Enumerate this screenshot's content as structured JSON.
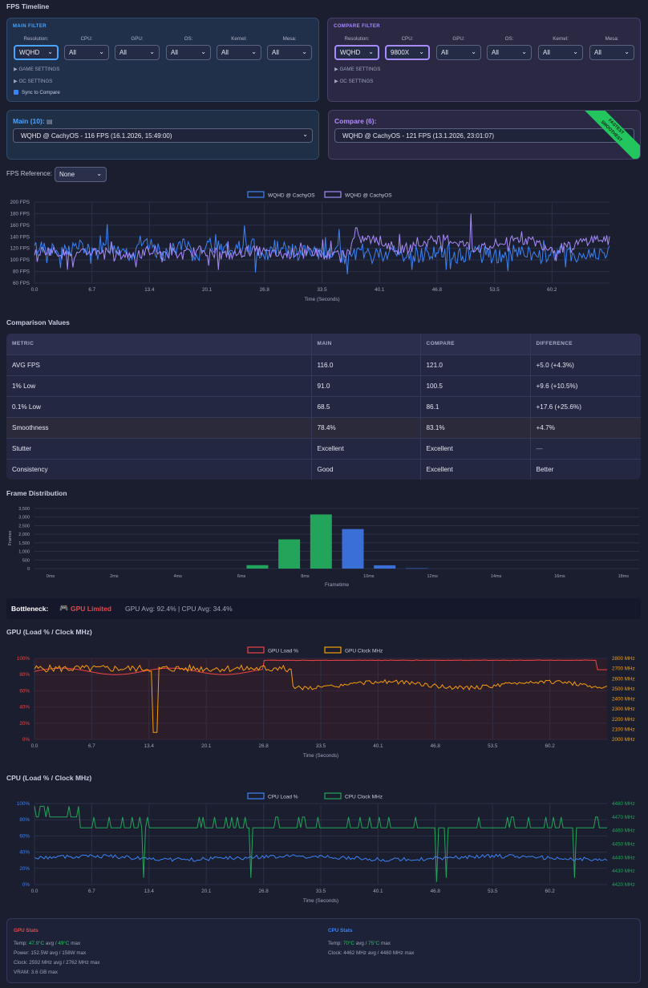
{
  "page_title": "FPS Timeline",
  "main_filter": {
    "title": "MAIN FILTER",
    "fields": [
      {
        "label": "Resolution:",
        "value": "WQHD"
      },
      {
        "label": "CPU:",
        "value": "All"
      },
      {
        "label": "GPU:",
        "value": "All"
      },
      {
        "label": "OS:",
        "value": "All"
      },
      {
        "label": "Kernel:",
        "value": "All"
      },
      {
        "label": "Mesa:",
        "value": "All"
      }
    ],
    "game_settings": "▶ GAME SETTINGS",
    "oc_settings": "▶ OC SETTINGS",
    "sync_label": "Sync to Compare"
  },
  "compare_filter": {
    "title": "COMPARE FILTER",
    "fields": [
      {
        "label": "Resolution:",
        "value": "WQHD"
      },
      {
        "label": "CPU:",
        "value": "9800X"
      },
      {
        "label": "GPU:",
        "value": "All"
      },
      {
        "label": "OS:",
        "value": "All"
      },
      {
        "label": "Kernel:",
        "value": "All"
      },
      {
        "label": "Mesa:",
        "value": "All"
      }
    ],
    "game_settings": "▶ GAME SETTINGS",
    "oc_settings": "▶ OC SETTINGS"
  },
  "main_run": {
    "label": "Main (10):",
    "value": "WQHD @ CachyOS - 116 FPS (16.1.2026, 15:49:00)"
  },
  "compare_run": {
    "label": "Compare (6):",
    "value": "WQHD @ CachyOS - 121 FPS (13.1.2026, 23:01:07)",
    "ribbon1": "FASTEST",
    "ribbon2": "SMOOTHEST"
  },
  "fps_reference": {
    "label": "FPS Reference:",
    "value": "None"
  },
  "comparison": {
    "title": "Comparison Values",
    "headers": [
      "METRIC",
      "MAIN",
      "COMPARE",
      "DIFFERENCE"
    ],
    "rows": [
      {
        "metric": "AVG FPS",
        "main": "116.0",
        "compare": "121.0",
        "diff": "+5.0 (+4.3%)"
      },
      {
        "metric": "1% Low",
        "main": "91.0",
        "compare": "100.5",
        "diff": "+9.6 (+10.5%)"
      },
      {
        "metric": "0.1% Low",
        "main": "68.5",
        "compare": "86.1",
        "diff": "+17.6 (+25.6%)"
      },
      {
        "metric": "Smoothness",
        "main": "78.4%",
        "compare": "83.1%",
        "diff": "+4.7%"
      },
      {
        "metric": "Stutter",
        "main": "Excellent",
        "compare": "Excellent",
        "diff": "—"
      },
      {
        "metric": "Consistency",
        "main": "Good",
        "compare": "Excellent",
        "diff": "Better"
      }
    ]
  },
  "frame_distribution": {
    "title": "Frame Distribution"
  },
  "bottleneck": {
    "label": "Bottleneck:",
    "icon": "🎮",
    "value": "GPU Limited",
    "detail": "GPU Avg: 92.4% | CPU Avg: 34.4%"
  },
  "gpu_section": {
    "title": "GPU (Load % / Clock MHz)"
  },
  "cpu_section": {
    "title": "CPU (Load % / Clock MHz)"
  },
  "gpu_stats": {
    "title": "GPU Stats",
    "temp_prefix": "Temp: ",
    "temp_avg": "47.9°C",
    "temp_mid": " avg / ",
    "temp_max": "49°C",
    "temp_suffix": " max",
    "power": "Power: 152.5W avg / 158W max",
    "clock": "Clock: 2592 MHz avg / 2762 MHz max",
    "vram": "VRAM: 3.6 GB max"
  },
  "cpu_stats": {
    "title": "CPU Stats",
    "temp_prefix": "Temp: ",
    "temp_avg": "70°C",
    "temp_mid": " avg / ",
    "temp_max": "75°C",
    "temp_suffix": " max",
    "clock": "Clock: 4462 MHz avg / 4480 MHz max"
  },
  "chart_data": [
    {
      "type": "line",
      "id": "fps",
      "series": [
        {
          "name": "WQHD @ CachyOS",
          "color": "#3b82f6",
          "mean": 116,
          "noise": 14
        },
        {
          "name": "WQHD @ CachyOS",
          "color": "#a78bfa",
          "mean": 121,
          "noise": 9
        }
      ],
      "x_ticks": [
        "0.0",
        "6.7",
        "13.4",
        "20.1",
        "26.8",
        "33.5",
        "40.1",
        "46.8",
        "53.5",
        "60.2"
      ],
      "y_ticks": [
        "200 FPS",
        "180 FPS",
        "160 FPS",
        "140 FPS",
        "120 FPS",
        "100 FPS",
        "80 FPS",
        "60 FPS"
      ],
      "ylim": [
        60,
        200
      ],
      "xlim": [
        0,
        67
      ],
      "xlabel": "Time (Seconds)"
    },
    {
      "type": "bar",
      "id": "frames",
      "categories": [
        "0ms",
        "2ms",
        "4ms",
        "6ms",
        "8ms",
        "10ms",
        "12ms",
        "14ms",
        "16ms",
        "18ms"
      ],
      "bins": [
        {
          "x": 6.5,
          "v": 200,
          "s": 0
        },
        {
          "x": 7.5,
          "v": 1700,
          "s": 0
        },
        {
          "x": 8.5,
          "v": 3150,
          "s": 0
        },
        {
          "x": 9.5,
          "v": 2300,
          "s": 1
        },
        {
          "x": 10.5,
          "v": 190,
          "s": 1
        },
        {
          "x": 11.5,
          "v": 20,
          "s": 1
        }
      ],
      "series_colors": [
        "#22a55a",
        "#3b6fd8"
      ],
      "y_ticks": [
        "3,500",
        "3,000",
        "2,500",
        "2,000",
        "1,500",
        "1,000",
        "500",
        "0"
      ],
      "ylim": [
        0,
        3500
      ],
      "ylabel": "Frames",
      "xlabel": "Frametime"
    },
    {
      "type": "line",
      "id": "gpu",
      "series": [
        {
          "name": "GPU Load %",
          "color": "#ef4444"
        },
        {
          "name": "GPU Clock MHz",
          "color": "#f59e0b"
        }
      ],
      "x_ticks": [
        "0.0",
        "6.7",
        "13.4",
        "20.1",
        "26.8",
        "33.5",
        "40.1",
        "46.8",
        "53.5",
        "60.2"
      ],
      "y_left": [
        "100%",
        "80%",
        "60%",
        "40%",
        "20%",
        "0%"
      ],
      "y_right": [
        "2800 MHz",
        "2700 MHz",
        "2600 MHz",
        "2500 MHz",
        "2400 MHz",
        "2300 MHz",
        "2200 MHz",
        "2100 MHz",
        "2000 MHz"
      ],
      "xlabel": "Time (Seconds)"
    },
    {
      "type": "line",
      "id": "cpu",
      "series": [
        {
          "name": "CPU Load %",
          "color": "#3b82f6"
        },
        {
          "name": "CPU Clock MHz",
          "color": "#22a55a"
        }
      ],
      "x_ticks": [
        "0.0",
        "6.7",
        "13.4",
        "20.1",
        "26.8",
        "33.5",
        "40.1",
        "46.8",
        "53.5",
        "60.2"
      ],
      "y_left": [
        "100%",
        "80%",
        "60%",
        "40%",
        "20%",
        "0%"
      ],
      "y_right": [
        "4480 MHz",
        "4470 MHz",
        "4460 MHz",
        "4450 MHz",
        "4440 MHz",
        "4430 MHz",
        "4420 MHz"
      ],
      "xlabel": "Time (Seconds)"
    }
  ],
  "colors": {
    "accent_main": "#4aa3ff",
    "accent_compare": "#a58bff",
    "good": "#22c55e",
    "warn": "#eab308",
    "gpu": "#ef4444",
    "cpu": "#3b82f6"
  }
}
